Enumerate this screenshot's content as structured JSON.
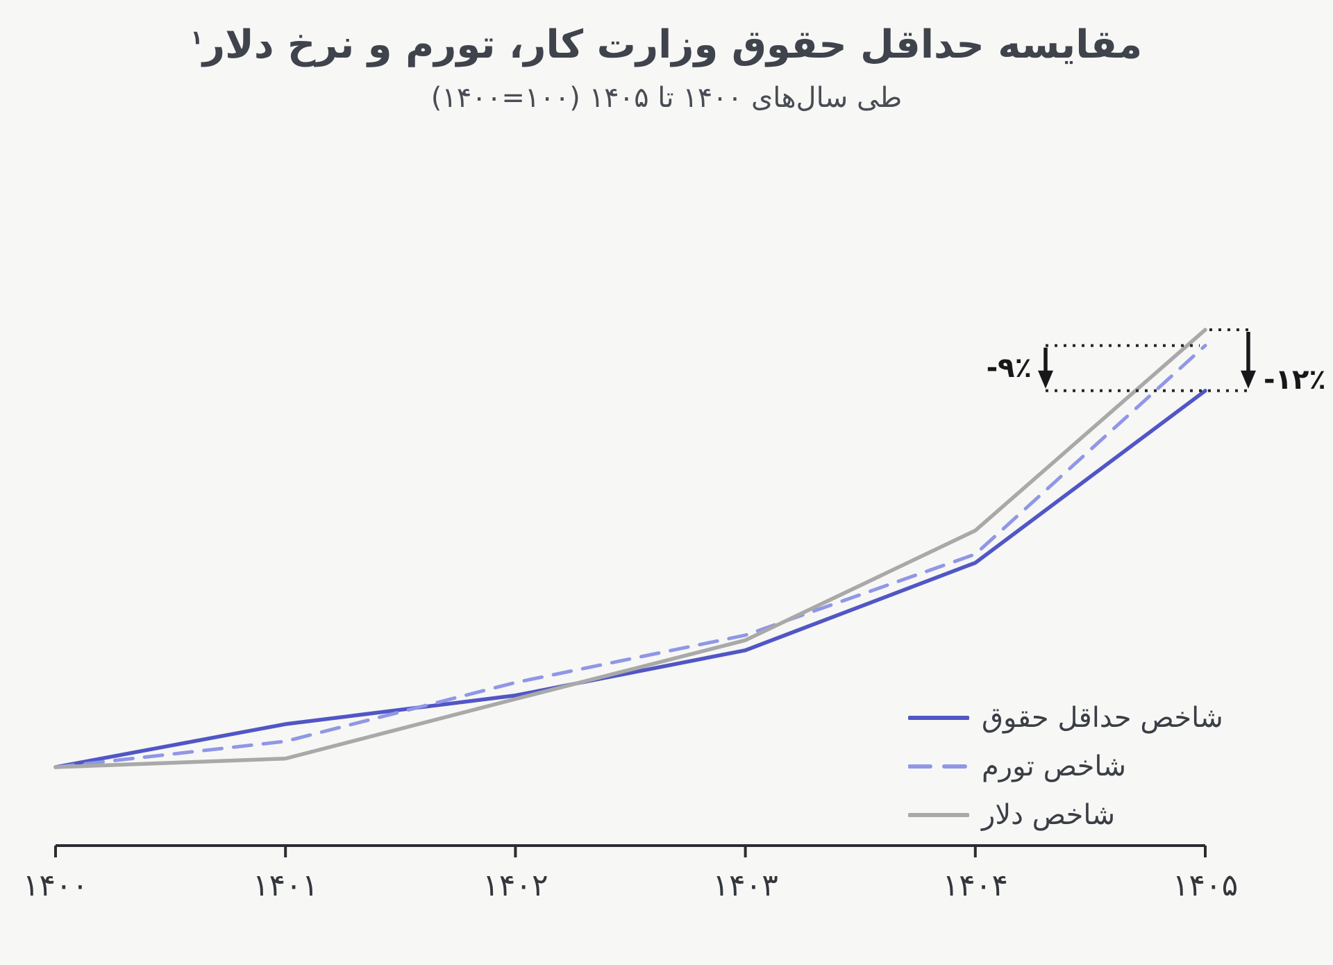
{
  "figure": {
    "title": "مقایسه حداقل حقوق وزارت کار، تورم و نرخ دلار",
    "title_footnote_marker": "۱",
    "subtitle": "طی سال‌های ۱۴۰۰ تا ۱۴۰۵ (‪۱۴۰۰=۱۰۰‬)"
  },
  "colors": {
    "background": "#f7f7f5",
    "title_text": "#3f434c",
    "axis": "#2b2d31",
    "annotation": "#17181a",
    "wage_line": "#5156c5",
    "inflation_line": "#9097e6",
    "dollar_line": "#a9a9a9"
  },
  "chart_data": {
    "type": "line",
    "title": "مقایسه حداقل حقوق وزارت کار، تورم و نرخ دلار",
    "subtitle": "طی سال‌های ۱۴۰۰ تا ۱۴۰۵ (۱۴۰۰=۱۰۰)",
    "categories": [
      "۱۴۰۰",
      "۱۴۰۱",
      "۱۴۰۲",
      "۱۴۰۳",
      "۱۴۰۴",
      "۱۴۰۵"
    ],
    "index_base": 100,
    "grid": false,
    "y_axis_visible": false,
    "legend_position": "lower right",
    "series": [
      {
        "name": "شاخص حداقل حقوق",
        "style": "solid",
        "color": "#5156c5",
        "values": [
          100,
          160,
          200,
          263,
          385,
          625
        ]
      },
      {
        "name": "شاخص تورم",
        "style": "dashed",
        "color": "#9097e6",
        "values": [
          100,
          136,
          218,
          284,
          397,
          688
        ]
      },
      {
        "name": "شاخص دلار",
        "style": "solid",
        "color": "#a9a9a9",
        "values": [
          100,
          112,
          195,
          277,
          430,
          710
        ]
      }
    ],
    "annotations": [
      {
        "label": "-۹٪",
        "at_category": "۱۴۰۵",
        "from_series_index": 1,
        "to_series_index": 0
      },
      {
        "label": "-۱۲٪",
        "at_category": "۱۴۰۵",
        "from_series_index": 2,
        "to_series_index": 0
      }
    ]
  }
}
